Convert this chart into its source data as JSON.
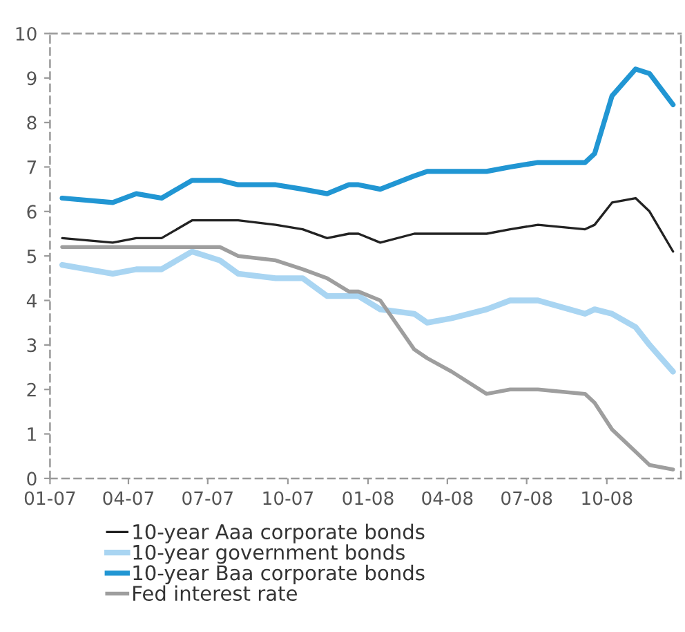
{
  "chart_data": {
    "type": "line",
    "x": [
      "2007-01-15",
      "2007-03-14",
      "2007-04-10",
      "2007-05-09",
      "2007-06-13",
      "2007-07-15",
      "2007-08-05",
      "2007-09-17",
      "2007-10-18",
      "2007-11-15",
      "2007-12-10",
      "2007-12-21",
      "2008-01-15",
      "2008-02-23",
      "2008-03-09",
      "2008-04-06",
      "2008-05-16",
      "2008-06-12",
      "2008-07-14",
      "2008-09-06",
      "2008-09-17",
      "2008-10-07",
      "2008-11-03",
      "2008-11-19",
      "2008-12-16"
    ],
    "series": [
      {
        "name": "10-year Aaa corporate bonds",
        "color": "#222222",
        "values": [
          5.4,
          5.3,
          5.4,
          5.4,
          5.8,
          5.8,
          5.8,
          5.7,
          5.6,
          5.4,
          5.5,
          5.5,
          5.3,
          5.5,
          5.5,
          5.5,
          5.5,
          5.6,
          5.7,
          5.6,
          5.7,
          6.2,
          6.3,
          6.0,
          5.1
        ]
      },
      {
        "name": "10-year government bonds",
        "color": "#a9d5f2",
        "values": [
          4.8,
          4.6,
          4.7,
          4.7,
          5.1,
          4.9,
          4.6,
          4.5,
          4.5,
          4.1,
          4.1,
          4.1,
          3.8,
          3.7,
          3.5,
          3.6,
          3.8,
          4.0,
          4.0,
          3.7,
          3.8,
          3.7,
          3.4,
          3.0,
          2.4
        ]
      },
      {
        "name": "10-year Baa corporate bonds",
        "color": "#2196d3",
        "values": [
          6.3,
          6.2,
          6.4,
          6.3,
          6.7,
          6.7,
          6.6,
          6.6,
          6.5,
          6.4,
          6.6,
          6.6,
          6.5,
          6.8,
          6.9,
          6.9,
          6.9,
          7.0,
          7.1,
          7.1,
          7.3,
          8.6,
          9.2,
          9.1,
          8.4
        ]
      },
      {
        "name": "Fed interest rate",
        "color": "#9e9e9e",
        "values": [
          5.2,
          5.2,
          5.2,
          5.2,
          5.2,
          5.2,
          5.0,
          4.9,
          4.7,
          4.5,
          4.2,
          4.2,
          4.0,
          2.9,
          2.7,
          2.4,
          1.9,
          2.0,
          2.0,
          1.9,
          1.7,
          1.1,
          0.6,
          0.3,
          0.2
        ]
      }
    ],
    "xlim": [
      "2007-01-01",
      "2008-12-25"
    ],
    "xticks": [
      {
        "value": "2007-01-01",
        "label": "01-07"
      },
      {
        "value": "2007-04-01",
        "label": "04-07"
      },
      {
        "value": "2007-07-01",
        "label": "07-07"
      },
      {
        "value": "2007-10-01",
        "label": "10-07"
      },
      {
        "value": "2008-01-01",
        "label": "01-08"
      },
      {
        "value": "2008-04-01",
        "label": "04-08"
      },
      {
        "value": "2008-07-01",
        "label": "07-08"
      },
      {
        "value": "2008-10-01",
        "label": "10-08"
      }
    ],
    "ylim": [
      0,
      10
    ],
    "yticks": [
      0,
      1,
      2,
      3,
      4,
      5,
      6,
      7,
      8,
      9,
      10
    ],
    "grid": false,
    "legend": "bottom",
    "marker": "none",
    "line_style": "solid"
  }
}
